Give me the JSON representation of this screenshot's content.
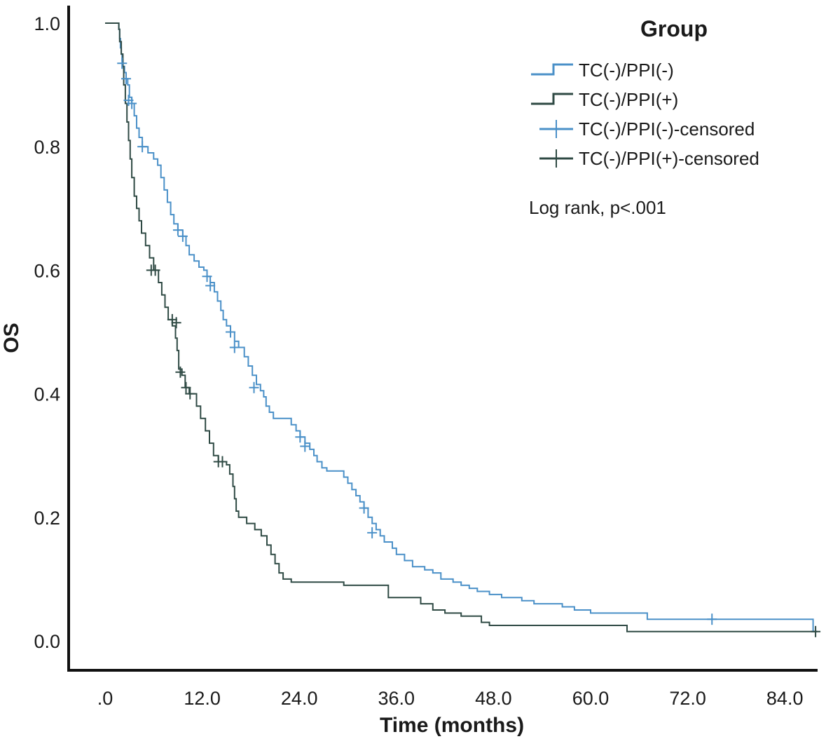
{
  "chart_data": {
    "type": "line",
    "title": "",
    "xlabel": "Time (months)",
    "ylabel": "OS",
    "xlim": [
      0,
      88
    ],
    "ylim": [
      0,
      1.0
    ],
    "x_ticks": [
      0,
      12,
      24,
      36,
      48,
      60,
      72,
      84
    ],
    "x_tick_labels": [
      ".0",
      "12.0",
      "24.0",
      "36.0",
      "48.0",
      "60.0",
      "72.0",
      "84.0"
    ],
    "y_ticks": [
      0,
      0.2,
      0.4,
      0.6,
      0.8,
      1.0
    ],
    "y_tick_labels": [
      "0.0",
      "0.2",
      "0.4",
      "0.6",
      "0.8",
      "1.0"
    ],
    "legend": {
      "title": "Group",
      "position": "top-right",
      "entries": [
        {
          "label": "TC(-)/PPI(-)",
          "kind": "line",
          "color": "#4a90c8"
        },
        {
          "label": "TC(-)/PPI(+)",
          "kind": "line",
          "color": "#2f4a44"
        },
        {
          "label": "TC(-)/PPI(-)-censored",
          "kind": "censor",
          "color": "#4a90c8"
        },
        {
          "label": "TC(-)/PPI(+)-censored",
          "kind": "censor",
          "color": "#2f4a44"
        }
      ]
    },
    "annotation": "Log rank, p<.001",
    "series": [
      {
        "name": "TC(-)/PPI(-)",
        "color": "#4a90c8",
        "steps": [
          [
            0,
            1.0
          ],
          [
            1.5,
            1.0
          ],
          [
            1.7,
            0.99
          ],
          [
            1.8,
            0.975
          ],
          [
            1.9,
            0.96
          ],
          [
            2.0,
            0.95
          ],
          [
            2.1,
            0.94
          ],
          [
            2.2,
            0.93
          ],
          [
            2.4,
            0.92
          ],
          [
            2.6,
            0.91
          ],
          [
            2.8,
            0.9
          ],
          [
            3.0,
            0.88
          ],
          [
            3.3,
            0.87
          ],
          [
            3.6,
            0.85
          ],
          [
            3.9,
            0.83
          ],
          [
            4.2,
            0.815
          ],
          [
            4.6,
            0.8
          ],
          [
            5.3,
            0.79
          ],
          [
            6.0,
            0.78
          ],
          [
            6.5,
            0.77
          ],
          [
            6.9,
            0.75
          ],
          [
            7.3,
            0.73
          ],
          [
            7.7,
            0.71
          ],
          [
            8.1,
            0.69
          ],
          [
            8.5,
            0.675
          ],
          [
            9.0,
            0.665
          ],
          [
            9.6,
            0.655
          ],
          [
            10.0,
            0.64
          ],
          [
            10.4,
            0.625
          ],
          [
            11.0,
            0.615
          ],
          [
            11.6,
            0.605
          ],
          [
            12.2,
            0.6
          ],
          [
            12.6,
            0.59
          ],
          [
            13.0,
            0.58
          ],
          [
            13.5,
            0.565
          ],
          [
            13.9,
            0.55
          ],
          [
            14.3,
            0.535
          ],
          [
            14.6,
            0.52
          ],
          [
            15.0,
            0.51
          ],
          [
            15.5,
            0.5
          ],
          [
            16.0,
            0.485
          ],
          [
            16.5,
            0.475
          ],
          [
            17.2,
            0.46
          ],
          [
            17.7,
            0.445
          ],
          [
            18.2,
            0.43
          ],
          [
            18.7,
            0.415
          ],
          [
            19.2,
            0.405
          ],
          [
            19.6,
            0.395
          ],
          [
            19.9,
            0.38
          ],
          [
            20.3,
            0.37
          ],
          [
            20.8,
            0.36
          ],
          [
            22.5,
            0.36
          ],
          [
            23.0,
            0.35
          ],
          [
            23.6,
            0.34
          ],
          [
            24.1,
            0.33
          ],
          [
            24.7,
            0.32
          ],
          [
            25.3,
            0.31
          ],
          [
            25.8,
            0.3
          ],
          [
            26.2,
            0.29
          ],
          [
            26.8,
            0.28
          ],
          [
            27.4,
            0.275
          ],
          [
            29.0,
            0.275
          ],
          [
            29.5,
            0.265
          ],
          [
            30.0,
            0.255
          ],
          [
            30.5,
            0.245
          ],
          [
            31.0,
            0.235
          ],
          [
            31.5,
            0.225
          ],
          [
            32.0,
            0.215
          ],
          [
            32.5,
            0.2
          ],
          [
            33.0,
            0.19
          ],
          [
            33.5,
            0.18
          ],
          [
            34.0,
            0.17
          ],
          [
            34.5,
            0.16
          ],
          [
            35.5,
            0.15
          ],
          [
            36.0,
            0.14
          ],
          [
            37.0,
            0.13
          ],
          [
            38.0,
            0.12
          ],
          [
            39.5,
            0.115
          ],
          [
            40.5,
            0.11
          ],
          [
            41.5,
            0.1
          ],
          [
            43.0,
            0.095
          ],
          [
            44.0,
            0.09
          ],
          [
            45.0,
            0.085
          ],
          [
            46.0,
            0.08
          ],
          [
            47.5,
            0.075
          ],
          [
            49.0,
            0.07
          ],
          [
            51.5,
            0.065
          ],
          [
            53.0,
            0.06
          ],
          [
            56.5,
            0.055
          ],
          [
            58.0,
            0.05
          ],
          [
            60.0,
            0.045
          ],
          [
            66.5,
            0.045
          ],
          [
            67.0,
            0.035
          ],
          [
            87.5,
            0.035
          ],
          [
            87.5,
            0.015
          ],
          [
            88.0,
            0.015
          ]
        ],
        "censored": [
          [
            2.1,
            0.935
          ],
          [
            2.6,
            0.91
          ],
          [
            2.9,
            0.875
          ],
          [
            3.3,
            0.87
          ],
          [
            4.6,
            0.8
          ],
          [
            9.0,
            0.665
          ],
          [
            9.6,
            0.655
          ],
          [
            12.6,
            0.59
          ],
          [
            13.0,
            0.575
          ],
          [
            15.5,
            0.5
          ],
          [
            16.0,
            0.475
          ],
          [
            18.4,
            0.41
          ],
          [
            24.1,
            0.33
          ],
          [
            24.7,
            0.315
          ],
          [
            32.0,
            0.215
          ],
          [
            33.0,
            0.175
          ],
          [
            75.0,
            0.035
          ]
        ]
      },
      {
        "name": "TC(-)/PPI(+)",
        "color": "#2f4a44",
        "steps": [
          [
            0,
            1.0
          ],
          [
            1.5,
            1.0
          ],
          [
            1.7,
            0.99
          ],
          [
            1.8,
            0.97
          ],
          [
            2.0,
            0.95
          ],
          [
            2.2,
            0.93
          ],
          [
            2.3,
            0.9
          ],
          [
            2.5,
            0.87
          ],
          [
            2.7,
            0.84
          ],
          [
            2.9,
            0.81
          ],
          [
            3.1,
            0.78
          ],
          [
            3.3,
            0.75
          ],
          [
            3.6,
            0.72
          ],
          [
            3.9,
            0.7
          ],
          [
            4.2,
            0.68
          ],
          [
            4.5,
            0.66
          ],
          [
            5.0,
            0.64
          ],
          [
            5.5,
            0.62
          ],
          [
            6.0,
            0.6
          ],
          [
            6.6,
            0.58
          ],
          [
            7.0,
            0.56
          ],
          [
            7.4,
            0.54
          ],
          [
            7.8,
            0.52
          ],
          [
            8.3,
            0.51
          ],
          [
            8.7,
            0.49
          ],
          [
            8.9,
            0.47
          ],
          [
            9.1,
            0.44
          ],
          [
            9.5,
            0.43
          ],
          [
            9.9,
            0.41
          ],
          [
            10.4,
            0.4
          ],
          [
            11.3,
            0.38
          ],
          [
            11.8,
            0.36
          ],
          [
            12.4,
            0.34
          ],
          [
            12.9,
            0.32
          ],
          [
            13.4,
            0.3
          ],
          [
            14.0,
            0.29
          ],
          [
            15.0,
            0.285
          ],
          [
            15.4,
            0.27
          ],
          [
            15.8,
            0.25
          ],
          [
            16.0,
            0.23
          ],
          [
            16.2,
            0.21
          ],
          [
            16.5,
            0.2
          ],
          [
            17.5,
            0.19
          ],
          [
            18.5,
            0.18
          ],
          [
            19.3,
            0.17
          ],
          [
            20.0,
            0.155
          ],
          [
            20.5,
            0.14
          ],
          [
            21.0,
            0.125
          ],
          [
            21.5,
            0.11
          ],
          [
            22.0,
            0.1
          ],
          [
            23.0,
            0.095
          ],
          [
            26.5,
            0.095
          ],
          [
            29.5,
            0.09
          ],
          [
            35.0,
            0.07
          ],
          [
            39.0,
            0.06
          ],
          [
            40.5,
            0.05
          ],
          [
            42.0,
            0.045
          ],
          [
            44.0,
            0.04
          ],
          [
            46.5,
            0.03
          ],
          [
            47.5,
            0.025
          ],
          [
            64.0,
            0.025
          ],
          [
            64.5,
            0.015
          ],
          [
            88.0,
            0.015
          ]
        ],
        "censored": [
          [
            5.7,
            0.6
          ],
          [
            6.2,
            0.6
          ],
          [
            8.3,
            0.52
          ],
          [
            8.8,
            0.515
          ],
          [
            9.3,
            0.435
          ],
          [
            10.0,
            0.41
          ],
          [
            10.5,
            0.4
          ],
          [
            14.0,
            0.29
          ],
          [
            14.5,
            0.29
          ],
          [
            87.8,
            0.015
          ]
        ]
      }
    ]
  }
}
